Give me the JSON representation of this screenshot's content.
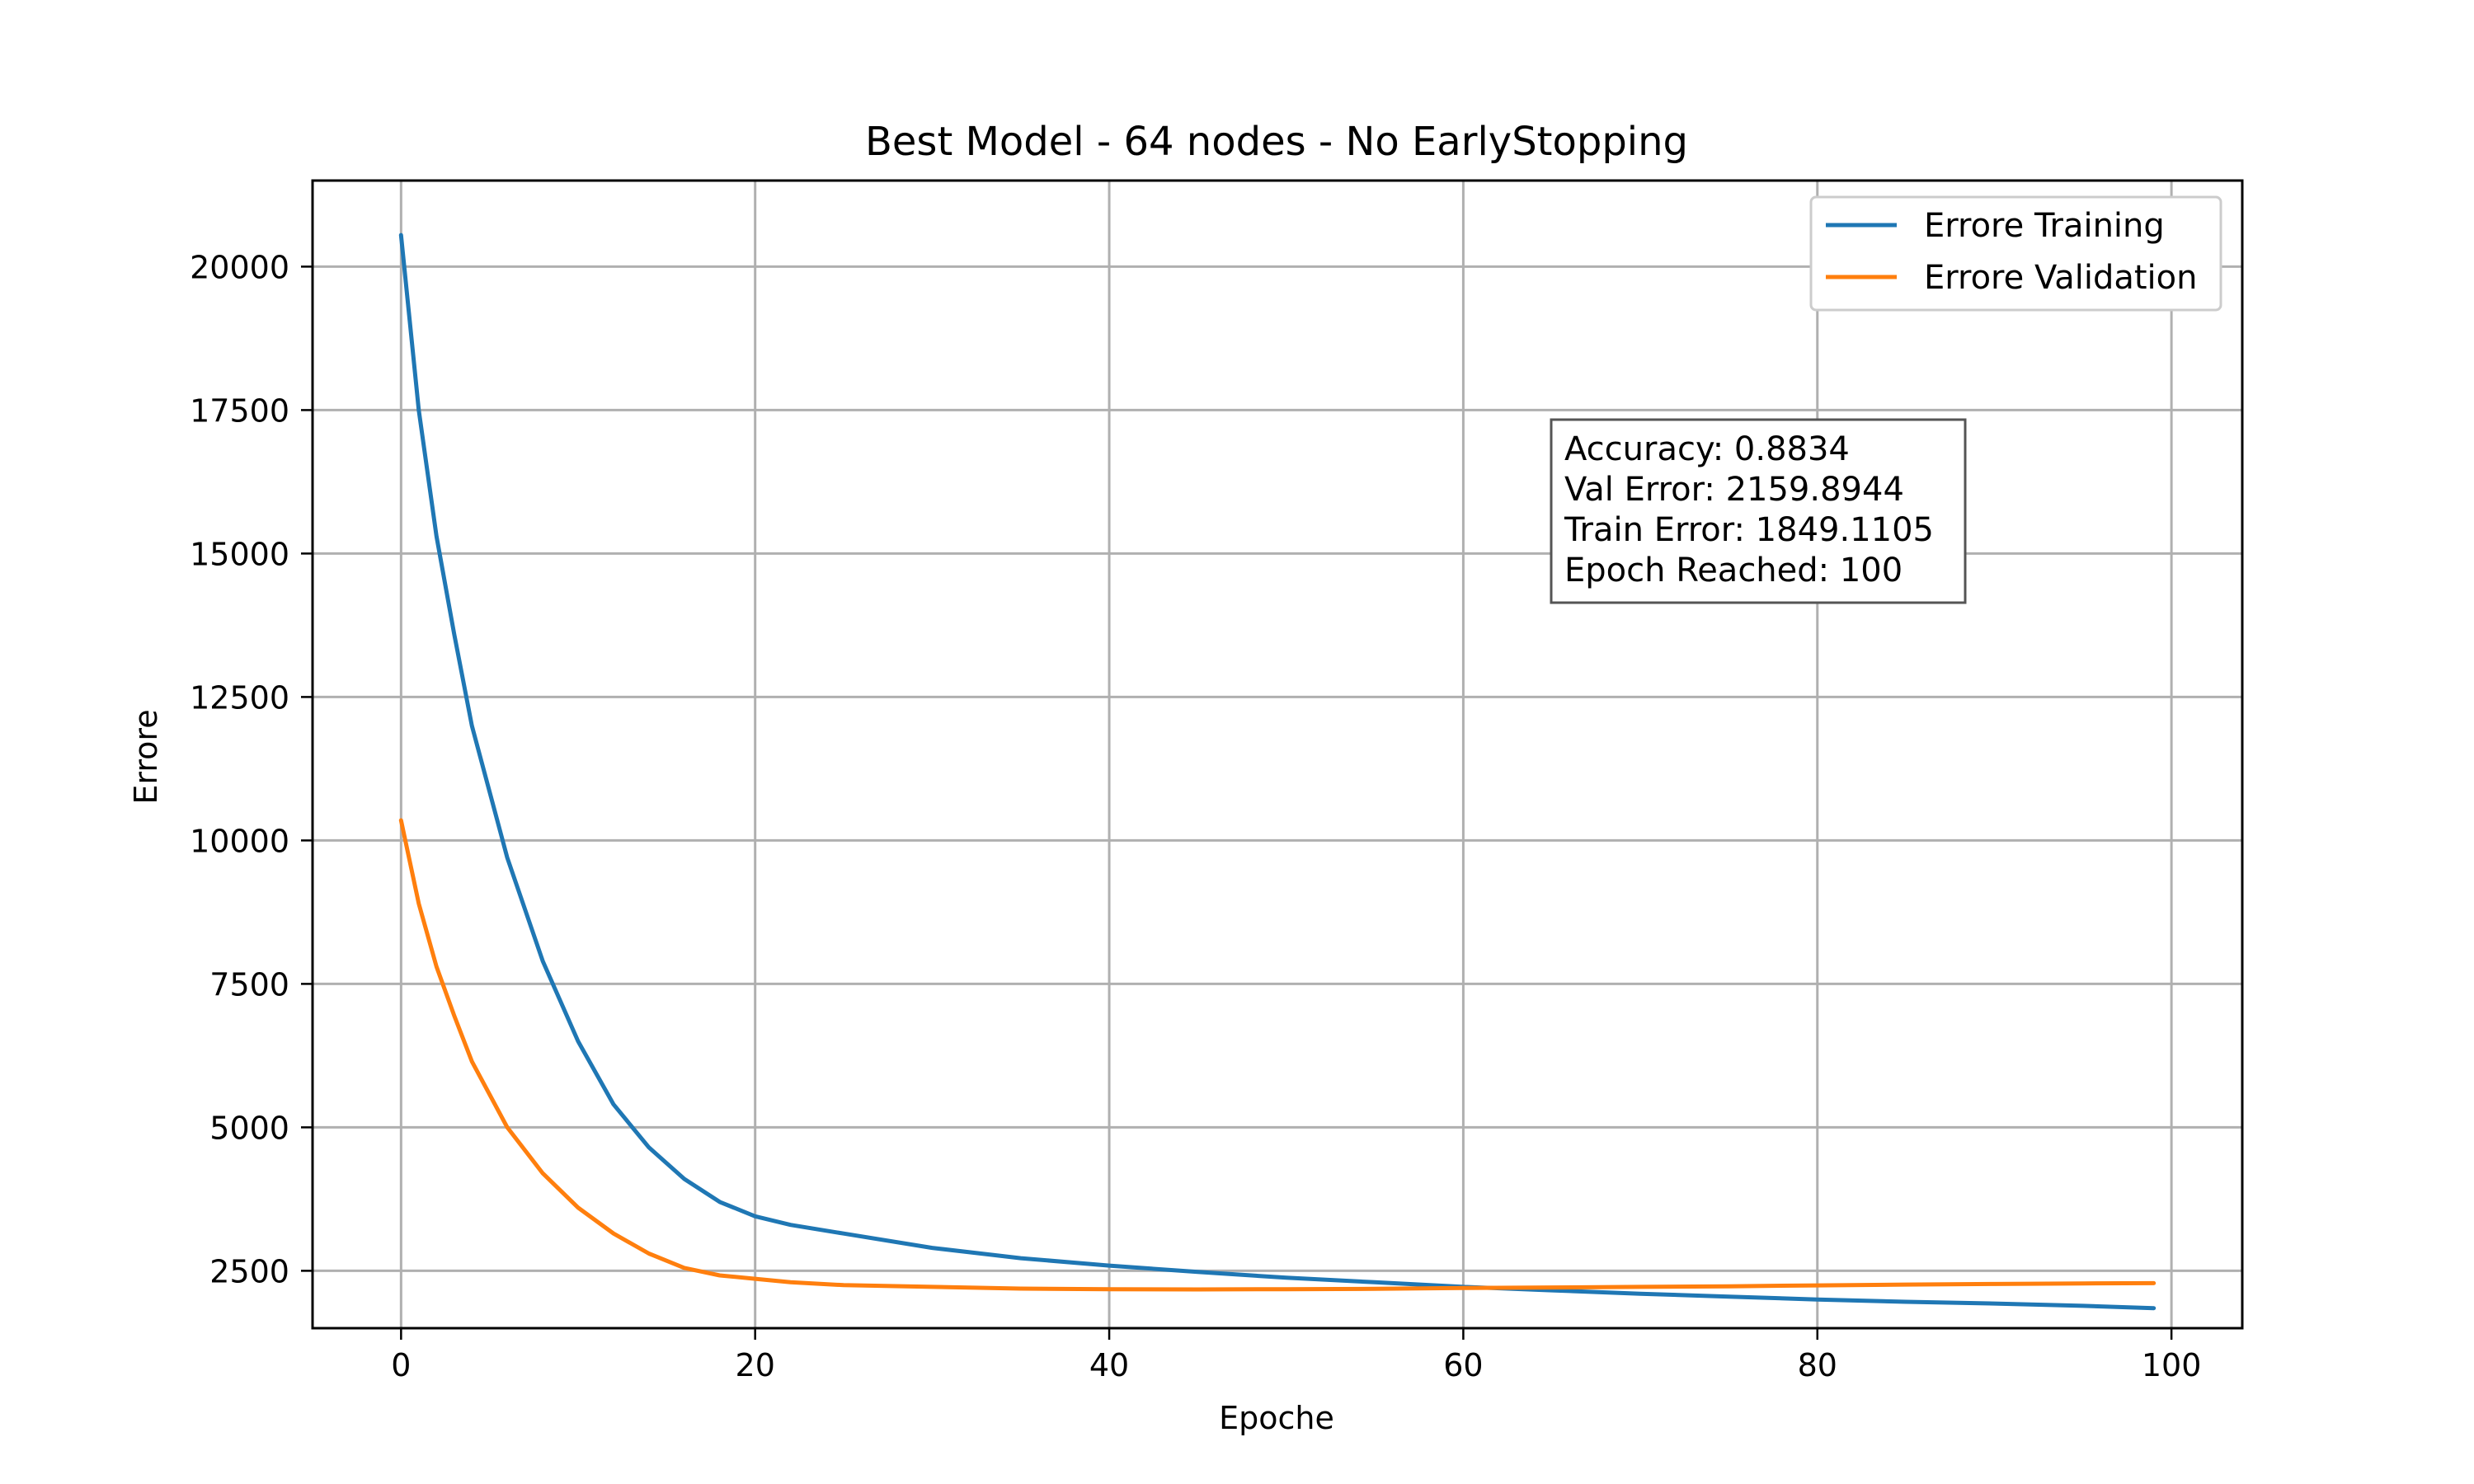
{
  "chart_data": {
    "type": "line",
    "title": "Best Model - 64 nodes - No EarlyStopping",
    "xlabel": "Epoche",
    "ylabel": "Errore",
    "xlim": [
      -5,
      104
    ],
    "ylim": [
      1500,
      21500
    ],
    "xticks": [
      0,
      20,
      40,
      60,
      80,
      100
    ],
    "yticks": [
      2500,
      5000,
      7500,
      10000,
      12500,
      15000,
      17500,
      20000
    ],
    "grid": true,
    "legend_position": "top-right",
    "series": [
      {
        "name": "Errore Training",
        "color": "#1f77b4",
        "x": [
          0,
          1,
          2,
          3,
          4,
          6,
          8,
          10,
          12,
          14,
          16,
          18,
          20,
          22,
          25,
          30,
          35,
          40,
          45,
          50,
          55,
          60,
          65,
          70,
          75,
          80,
          85,
          90,
          95,
          99
        ],
        "y": [
          20550,
          17500,
          15300,
          13600,
          12000,
          9700,
          7900,
          6500,
          5400,
          4650,
          4100,
          3700,
          3450,
          3300,
          3150,
          2900,
          2720,
          2590,
          2480,
          2380,
          2300,
          2220,
          2160,
          2100,
          2050,
          2000,
          1960,
          1930,
          1890,
          1849
        ]
      },
      {
        "name": "Errore Validation",
        "color": "#ff7f0e",
        "x": [
          0,
          1,
          2,
          3,
          4,
          6,
          8,
          10,
          12,
          14,
          16,
          18,
          20,
          22,
          25,
          30,
          35,
          40,
          45,
          50,
          55,
          60,
          65,
          70,
          75,
          80,
          85,
          90,
          95,
          99
        ],
        "y": [
          10350,
          8900,
          7800,
          6950,
          6150,
          5000,
          4200,
          3600,
          3150,
          2800,
          2550,
          2420,
          2360,
          2300,
          2250,
          2220,
          2190,
          2180,
          2175,
          2180,
          2185,
          2200,
          2210,
          2220,
          2230,
          2245,
          2260,
          2270,
          2280,
          2285
        ]
      }
    ],
    "annotation": {
      "lines": [
        "Accuracy: 0.8834",
        "Val Error: 2159.8944",
        "Train Error: 1849.1105",
        "Epoch Reached: 100"
      ]
    }
  }
}
